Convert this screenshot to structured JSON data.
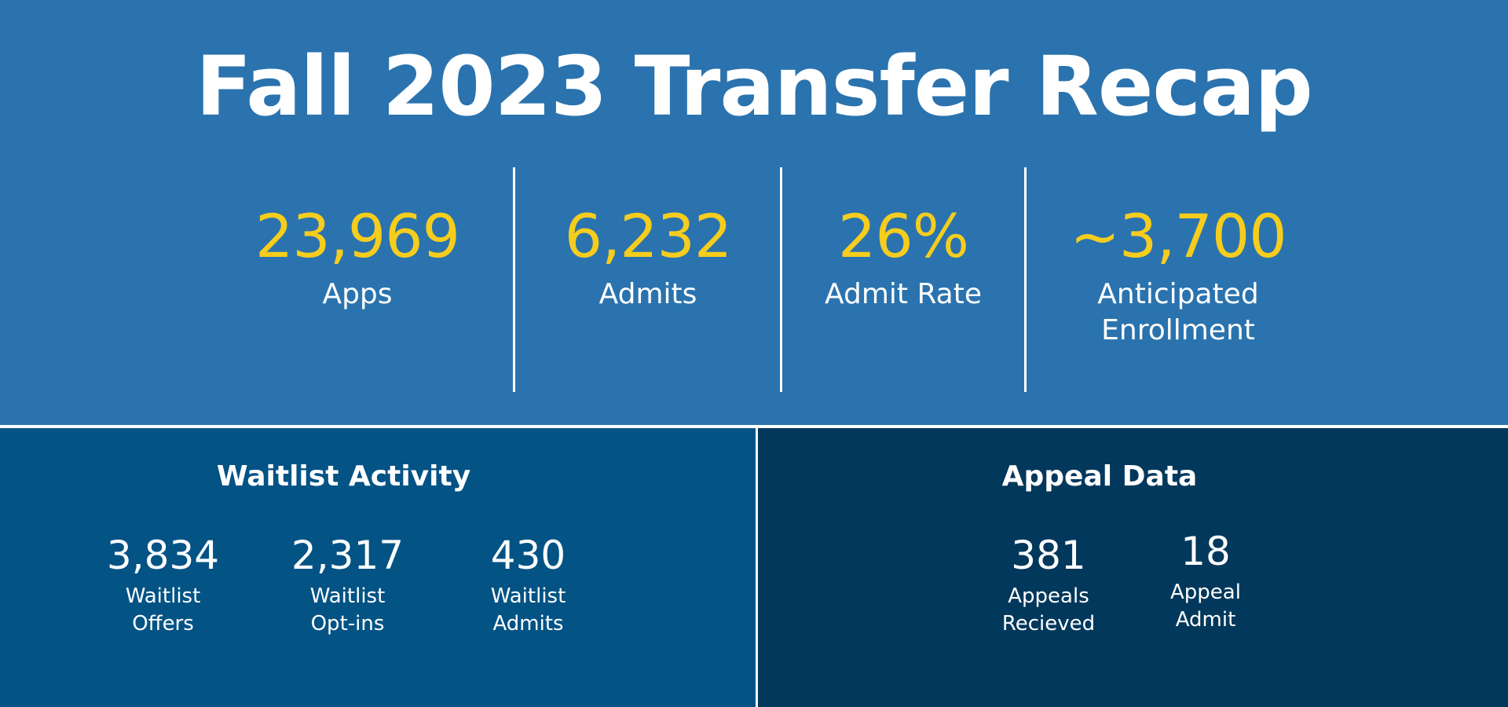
{
  "title": "Fall 2023 Transfer Recap",
  "stats": [
    {
      "value": "23,969",
      "label": "Apps"
    },
    {
      "value": "6,232",
      "label": "Admits"
    },
    {
      "value": "26%",
      "label": "Admit Rate"
    },
    {
      "value": "~3,700",
      "label": "Anticipated\nEnrollment"
    }
  ],
  "waitlist": {
    "title": "Waitlist Activity",
    "items": [
      {
        "value": "3,834",
        "label": "Waitlist\nOffers"
      },
      {
        "value": "2,317",
        "label": "Waitlist\nOpt-ins"
      },
      {
        "value": "430",
        "label": "Waitlist\nAdmits"
      }
    ]
  },
  "appeal": {
    "title": "Appeal Data",
    "items": [
      {
        "value": "381",
        "label": "Appeals\nRecieved"
      },
      {
        "value": "18",
        "label": "Appeal\nAdmit"
      }
    ]
  },
  "colors": {
    "top_background": "#2a73ae",
    "waitlist_background": "#035385",
    "appeal_background": "#02385c",
    "accent": "#f6cd1d",
    "text": "#ffffff"
  }
}
